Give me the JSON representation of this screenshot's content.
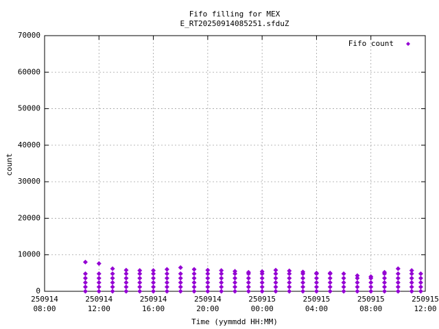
{
  "chart_data": {
    "type": "scatter",
    "title": "Fifo filling for MEX",
    "subtitle": "E_RT20250914085251.sfduZ",
    "x_label": "Time (yymmdd HH:MM)",
    "y_label": "count",
    "legend_position": "top-right",
    "grid": true,
    "xlim": [
      "250914 08:00",
      "250915 12:00"
    ],
    "xticks": [
      {
        "value": "250914 08:00",
        "label": "250914\n08:00"
      },
      {
        "value": "250914 12:00",
        "label": "250914\n12:00"
      },
      {
        "value": "250914 16:00",
        "label": "250914\n16:00"
      },
      {
        "value": "250914 20:00",
        "label": "250914\n20:00"
      },
      {
        "value": "250915 00:00",
        "label": "250915\n00:00"
      },
      {
        "value": "250915 04:00",
        "label": "250915\n04:00"
      },
      {
        "value": "250915 08:00",
        "label": "250915\n08:00"
      },
      {
        "value": "250915 12:00",
        "label": "250915\n12:00"
      }
    ],
    "ylim": [
      0,
      70000
    ],
    "yticks": [
      0,
      10000,
      20000,
      30000,
      40000,
      50000,
      60000,
      70000
    ],
    "series": [
      {
        "name": "Fifo count",
        "color": "#9400d3",
        "x": [
          "250914 11:00",
          "250914 11:00",
          "250914 11:00",
          "250914 11:00",
          "250914 11:00",
          "250914 11:00",
          "250914 12:00",
          "250914 12:00",
          "250914 12:00",
          "250914 12:00",
          "250914 12:00",
          "250914 12:00",
          "250914 13:00",
          "250914 13:00",
          "250914 13:00",
          "250914 13:00",
          "250914 13:00",
          "250914 13:00",
          "250914 14:00",
          "250914 14:00",
          "250914 14:00",
          "250914 14:00",
          "250914 14:00",
          "250914 14:00",
          "250914 15:00",
          "250914 15:00",
          "250914 15:00",
          "250914 15:00",
          "250914 15:00",
          "250914 15:00",
          "250914 16:00",
          "250914 16:00",
          "250914 16:00",
          "250914 16:00",
          "250914 16:00",
          "250914 16:00",
          "250914 17:00",
          "250914 17:00",
          "250914 17:00",
          "250914 17:00",
          "250914 17:00",
          "250914 17:00",
          "250914 18:00",
          "250914 18:00",
          "250914 18:00",
          "250914 18:00",
          "250914 18:00",
          "250914 18:00",
          "250914 19:00",
          "250914 19:00",
          "250914 19:00",
          "250914 19:00",
          "250914 19:00",
          "250914 19:00",
          "250914 20:00",
          "250914 20:00",
          "250914 20:00",
          "250914 20:00",
          "250914 20:00",
          "250914 20:00",
          "250914 21:00",
          "250914 21:00",
          "250914 21:00",
          "250914 21:00",
          "250914 21:00",
          "250914 21:00",
          "250914 22:00",
          "250914 22:00",
          "250914 22:00",
          "250914 22:00",
          "250914 22:00",
          "250914 22:00",
          "250914 23:00",
          "250914 23:00",
          "250914 23:00",
          "250914 23:00",
          "250914 23:00",
          "250914 23:00",
          "250915 00:00",
          "250915 00:00",
          "250915 00:00",
          "250915 00:00",
          "250915 00:00",
          "250915 00:00",
          "250915 01:00",
          "250915 01:00",
          "250915 01:00",
          "250915 01:00",
          "250915 01:00",
          "250915 01:00",
          "250915 02:00",
          "250915 02:00",
          "250915 02:00",
          "250915 02:00",
          "250915 02:00",
          "250915 02:00",
          "250915 03:00",
          "250915 03:00",
          "250915 03:00",
          "250915 03:00",
          "250915 03:00",
          "250915 03:00",
          "250915 04:00",
          "250915 04:00",
          "250915 04:00",
          "250915 04:00",
          "250915 04:00",
          "250915 04:00",
          "250915 05:00",
          "250915 05:00",
          "250915 05:00",
          "250915 05:00",
          "250915 05:00",
          "250915 05:00",
          "250915 06:00",
          "250915 06:00",
          "250915 06:00",
          "250915 06:00",
          "250915 06:00",
          "250915 07:00",
          "250915 07:00",
          "250915 07:00",
          "250915 07:00",
          "250915 07:00",
          "250915 08:00",
          "250915 08:00",
          "250915 08:00",
          "250915 08:00",
          "250915 08:00",
          "250915 09:00",
          "250915 09:00",
          "250915 09:00",
          "250915 09:00",
          "250915 09:00",
          "250915 09:00",
          "250915 10:00",
          "250915 10:00",
          "250915 10:00",
          "250915 10:00",
          "250915 10:00",
          "250915 10:00",
          "250915 11:00",
          "250915 11:00",
          "250915 11:00",
          "250915 11:00",
          "250915 11:00",
          "250915 11:00",
          "250915 11:40",
          "250915 11:40",
          "250915 11:40",
          "250915 11:40",
          "250915 11:40"
        ],
        "values": [
          0,
          1200,
          2400,
          3600,
          4800,
          8000,
          0,
          1200,
          2400,
          3600,
          4800,
          7600,
          0,
          1200,
          2400,
          3600,
          4800,
          6200,
          0,
          1200,
          2400,
          3600,
          4800,
          5800,
          0,
          1200,
          2400,
          3600,
          4800,
          5700,
          0,
          1200,
          2400,
          3600,
          4800,
          5700,
          0,
          1200,
          2400,
          3600,
          4800,
          6000,
          0,
          1200,
          2400,
          3600,
          4800,
          6500,
          0,
          1200,
          2400,
          3600,
          4800,
          6000,
          0,
          1200,
          2400,
          3600,
          4800,
          5800,
          0,
          1200,
          2400,
          3600,
          4800,
          5700,
          0,
          1200,
          2400,
          3600,
          4800,
          5500,
          0,
          1200,
          2400,
          3600,
          4800,
          5200,
          0,
          1200,
          2400,
          3600,
          4800,
          5400,
          0,
          1200,
          2400,
          3600,
          4800,
          5800,
          0,
          1200,
          2400,
          3600,
          4800,
          5600,
          0,
          1200,
          2400,
          3600,
          4800,
          5300,
          0,
          1200,
          2400,
          3600,
          4800,
          5000,
          0,
          1200,
          2400,
          3600,
          4800,
          5000,
          0,
          1200,
          2400,
          3600,
          4800,
          0,
          1200,
          2400,
          3600,
          4300,
          0,
          1200,
          2400,
          3600,
          4000,
          0,
          1200,
          2400,
          3600,
          4800,
          5200,
          0,
          1200,
          2400,
          3600,
          4800,
          6200,
          0,
          1200,
          2400,
          3600,
          4800,
          5700,
          0,
          1200,
          2400,
          3600,
          4800
        ]
      }
    ]
  }
}
